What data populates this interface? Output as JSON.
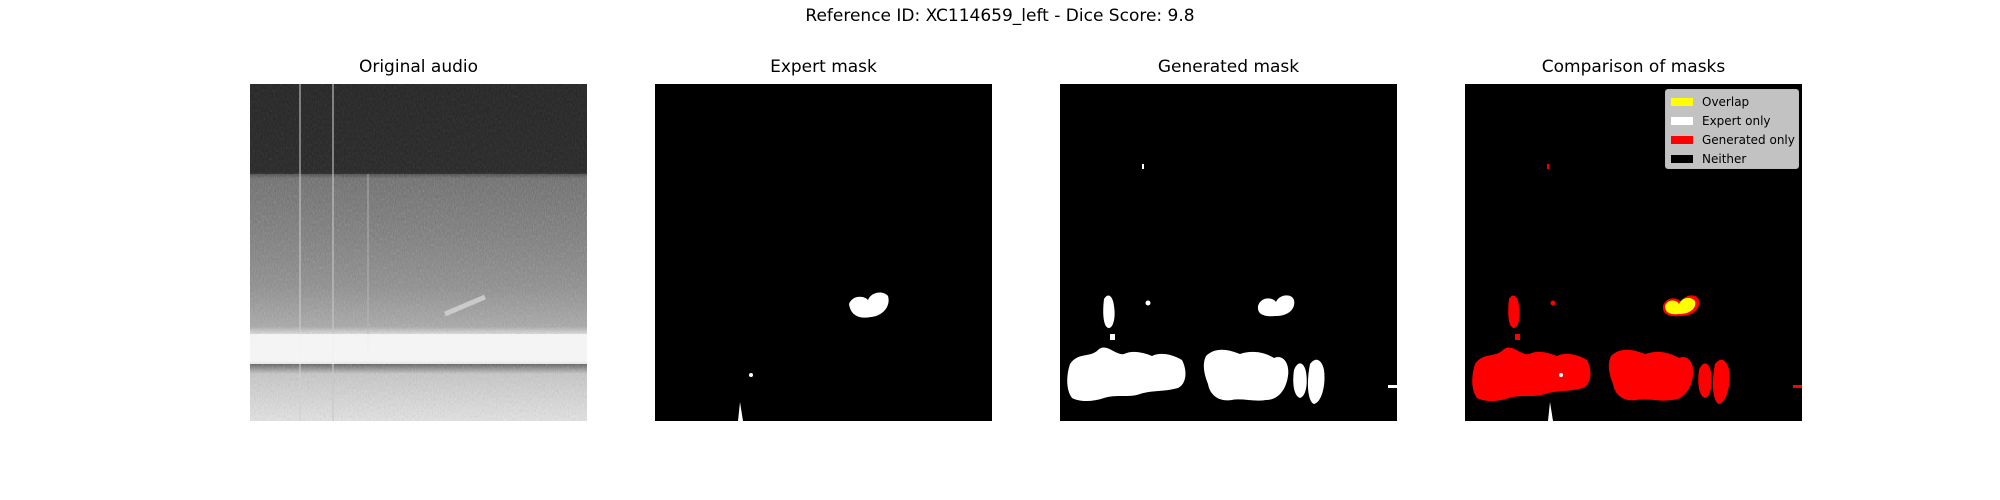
{
  "figure": {
    "suptitle": "Reference ID: XC114659_left - Dice Score: 9.8"
  },
  "panels": [
    {
      "title": "Original audio",
      "kind": "spectrogram"
    },
    {
      "title": "Expert mask",
      "kind": "mask"
    },
    {
      "title": "Generated mask",
      "kind": "mask"
    },
    {
      "title": "Comparison of masks",
      "kind": "comparison"
    }
  ],
  "chart_data": {
    "type": "heatmap",
    "title": "Reference ID: XC114659_left - Dice Score: 9.8",
    "metrics": {
      "reference_id": "XC114659_left",
      "dice_score": 9.8
    },
    "legend": {
      "placement": "top-right",
      "entries": [
        {
          "label": "Overlap",
          "color": "#ffff00"
        },
        {
          "label": "Expert only",
          "color": "#ffffff"
        },
        {
          "label": "Generated only",
          "color": "#ff0000"
        },
        {
          "label": "Neither",
          "color": "#000000"
        }
      ]
    },
    "colors": {
      "overlap": "#ffff00",
      "expert_only": "#ffffff",
      "generated_only": "#ff0000",
      "neither": "#000000",
      "mask_on": "#ffffff",
      "mask_off": "#000000"
    }
  }
}
